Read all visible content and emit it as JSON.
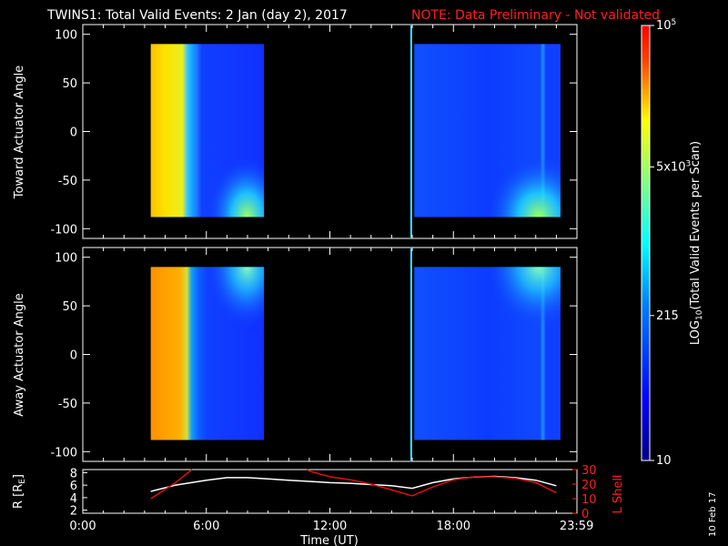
{
  "header": {
    "title": "TWINS1: Total Valid Events:  2 Jan (day   2), 2017",
    "note": "NOTE: Data Preliminary - Not validated"
  },
  "side_date": "10 Feb 17",
  "colors": {
    "background": "#000000",
    "axes": "#ffffff",
    "note": "#ff2020",
    "r_line": "#ffffff",
    "lshell_line": "#e01010",
    "marker": "#40e0ff"
  },
  "chart_data": [
    {
      "type": "heatmap",
      "name": "toward",
      "ylabel": "Toward Actuator Angle",
      "xlim": [
        0,
        24
      ],
      "ylim": [
        -110,
        110
      ],
      "yticks": [
        "100",
        "50",
        "0",
        "-50",
        "-100"
      ],
      "ytick_values": [
        100,
        50,
        0,
        -50,
        -100
      ],
      "blocks": [
        {
          "x": [
            3.3,
            8.8
          ],
          "y": [
            -88,
            90
          ]
        },
        {
          "x": [
            16.1,
            23.2
          ],
          "y": [
            -88,
            90
          ]
        }
      ],
      "marker_x": 15.95,
      "colorscale": "log"
    },
    {
      "type": "heatmap",
      "name": "away",
      "ylabel": "Away Actuator Angle",
      "xlim": [
        0,
        24
      ],
      "ylim": [
        -110,
        110
      ],
      "yticks": [
        "100",
        "50",
        "0",
        "-50",
        "-100"
      ],
      "ytick_values": [
        100,
        50,
        0,
        -50,
        -100
      ],
      "blocks": [
        {
          "x": [
            3.3,
            8.8
          ],
          "y": [
            -88,
            90
          ]
        },
        {
          "x": [
            16.1,
            23.2
          ],
          "y": [
            -88,
            90
          ]
        }
      ],
      "marker_x": 15.95,
      "colorscale": "log"
    },
    {
      "type": "line",
      "name": "ephemeris",
      "xlabel": "Time (UT)",
      "xticks": [
        "0:00",
        "6:00",
        "12:00",
        "18:00",
        "23:59"
      ],
      "xtick_values": [
        0,
        6,
        12,
        18,
        23.983
      ],
      "left_axis": {
        "label": "R [R",
        "label_sub": "E",
        "label_end": "]",
        "ylim": [
          1.5,
          8.5
        ],
        "ticks": [
          "8",
          "6",
          "4",
          "2"
        ],
        "tick_values": [
          8,
          6,
          4,
          2
        ]
      },
      "right_axis": {
        "label": "L Shell",
        "ylim": [
          0,
          30
        ],
        "ticks": [
          "30",
          "20",
          "10",
          "0"
        ],
        "tick_values": [
          30,
          20,
          10,
          0
        ]
      },
      "series": [
        {
          "axis": "left",
          "x": [
            3.3,
            4.5,
            6.0,
            7.0,
            8.0,
            9.0,
            10.0,
            11.0,
            12.0,
            13.0,
            14.0,
            15.0,
            16.0,
            17.0,
            18.0,
            19.0,
            20.0,
            21.0,
            22.0,
            23.0
          ],
          "values": [
            5.0,
            6.0,
            6.8,
            7.2,
            7.2,
            7.0,
            6.8,
            6.6,
            6.4,
            6.3,
            6.1,
            5.9,
            5.5,
            6.4,
            7.0,
            7.3,
            7.4,
            7.2,
            6.8,
            5.9
          ]
        },
        {
          "axis": "right",
          "x": [
            3.3,
            4.5,
            5.3,
            5.4,
            10.9,
            11.0,
            12.0,
            13.0,
            14.0,
            15.0,
            16.0,
            17.0,
            18.0,
            19.0,
            20.0,
            21.0,
            22.0,
            23.0
          ],
          "values": [
            10,
            21,
            30,
            null,
            30,
            29,
            25,
            23,
            20,
            16,
            12,
            18,
            23,
            25,
            25,
            24,
            21,
            14
          ]
        }
      ]
    }
  ],
  "colorbar": {
    "label_main": "LOG",
    "label_sub": "10",
    "label_rest": "(Total Valid Events per Scan)",
    "ticks": [
      {
        "base": "10",
        "exp": "5",
        "mult": "",
        "value": 100000
      },
      {
        "base": "5x10",
        "exp": "3",
        "mult": "",
        "value": 5000
      },
      {
        "base": "215",
        "exp": "",
        "mult": "",
        "value": 215
      },
      {
        "base": "10",
        "exp": "",
        "mult": "",
        "value": 10
      }
    ],
    "range": [
      10,
      100000
    ]
  }
}
